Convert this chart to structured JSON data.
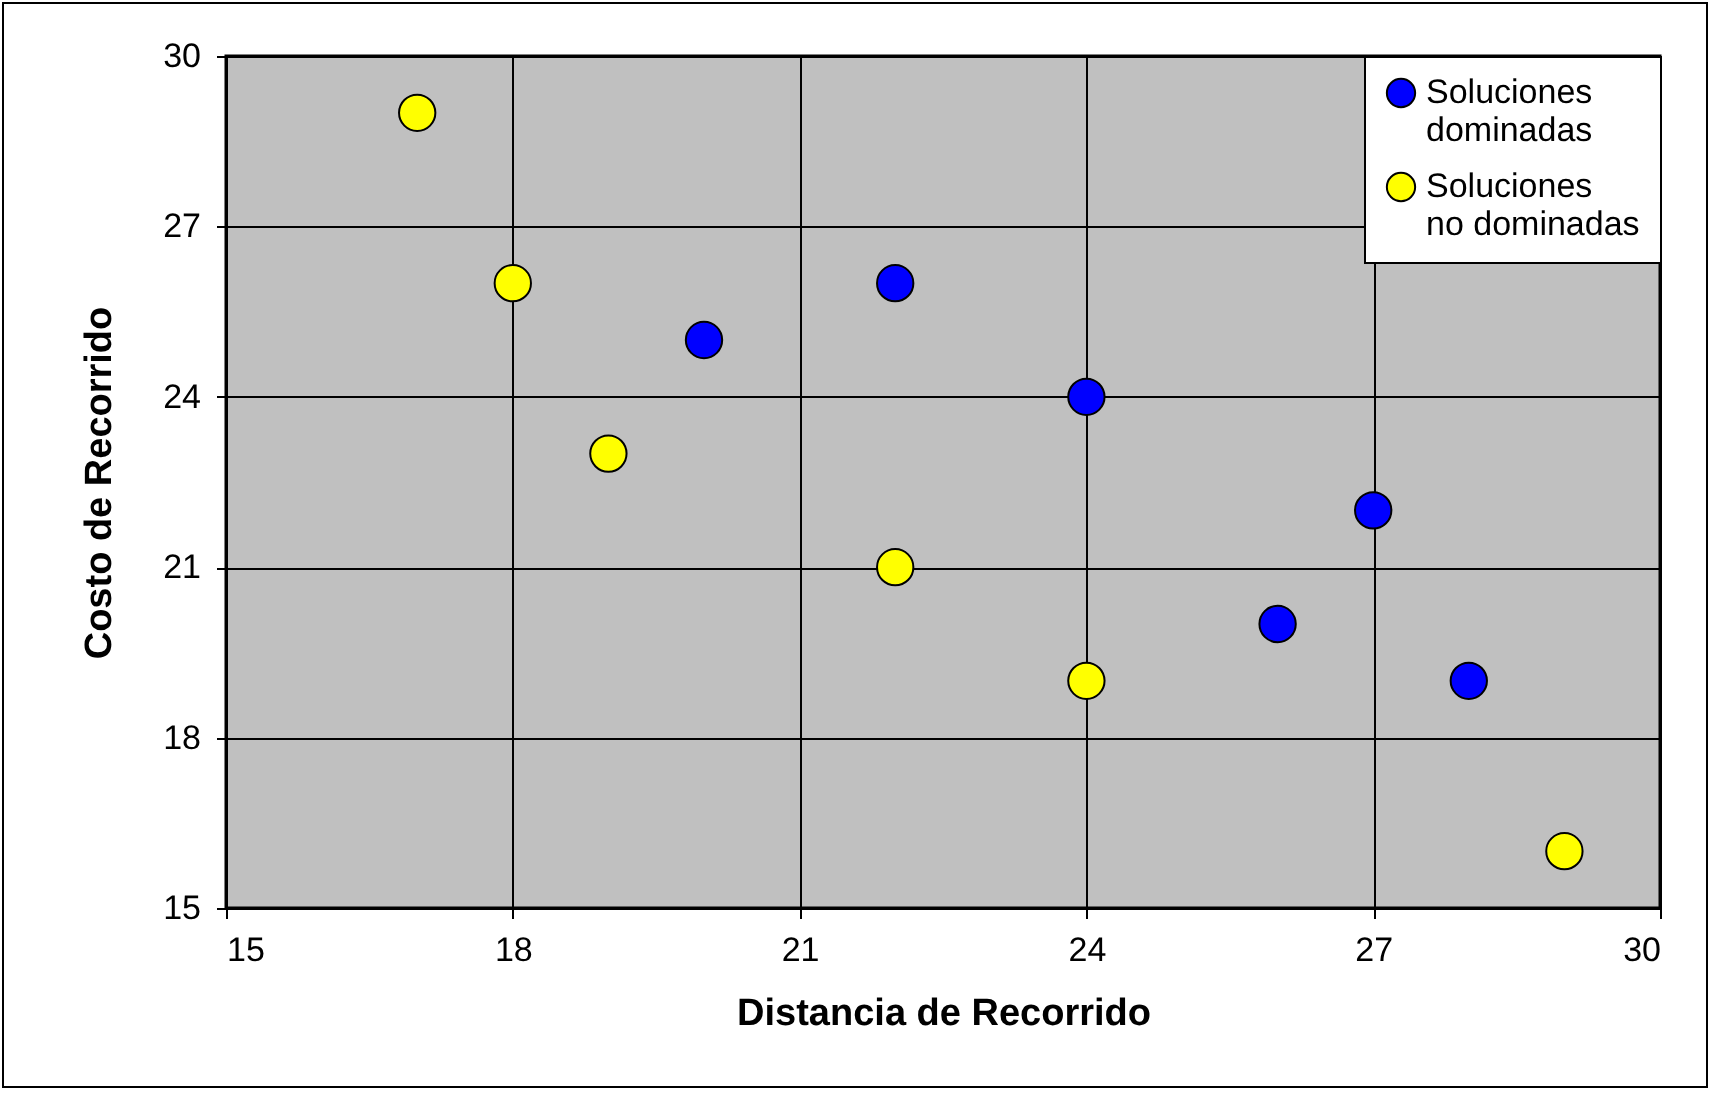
{
  "chart_data": {
    "type": "scatter",
    "xlabel": "Distancia de Recorrido",
    "ylabel": "Costo de Recorrido",
    "xlim": [
      15,
      30
    ],
    "xticks": [
      15,
      18,
      21,
      24,
      27,
      30
    ],
    "ylim": [
      15,
      30
    ],
    "yticks": [
      15,
      18,
      21,
      24,
      27,
      30
    ],
    "grid": true,
    "legend": "top right",
    "marker": "circle",
    "series": [
      {
        "name": "Soluciones dominadas",
        "color": "#0000ff",
        "x": [
          20,
          22,
          24,
          26,
          27,
          28
        ],
        "values": [
          25,
          26,
          24,
          20,
          22,
          19
        ]
      },
      {
        "name": "Soluciones no dominadas",
        "color": "#ffff00",
        "x": [
          17,
          18,
          19,
          22,
          24,
          29
        ],
        "values": [
          29,
          26,
          23,
          21,
          19,
          16
        ]
      }
    ]
  }
}
